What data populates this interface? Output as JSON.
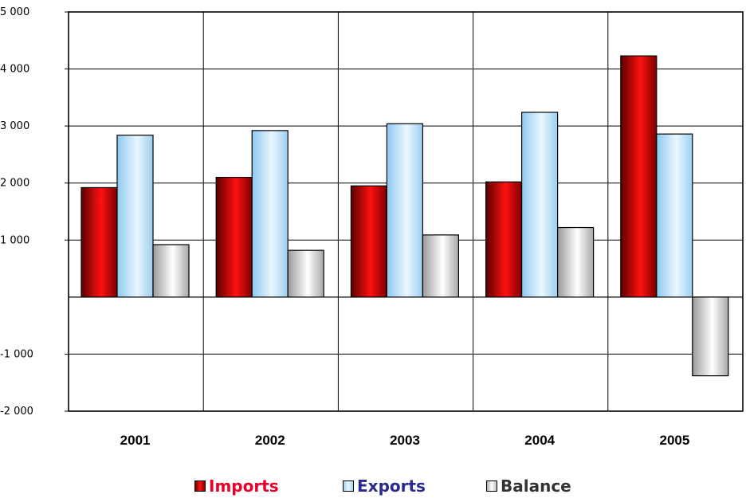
{
  "chart_data": {
    "type": "bar",
    "categories": [
      "2001",
      "2002",
      "2003",
      "2004",
      "2005"
    ],
    "series": [
      {
        "name": "Imports",
        "values": [
          1920,
          2100,
          1950,
          2020,
          4230
        ],
        "color": "#cc0000"
      },
      {
        "name": "Exports",
        "values": [
          2840,
          2920,
          3040,
          3240,
          2860
        ],
        "color": "#bfe6ff"
      },
      {
        "name": "Balance",
        "values": [
          920,
          820,
          1090,
          1220,
          -1380
        ],
        "color": "#e0e0e0"
      }
    ],
    "y_ticks": [
      "5 000",
      "4 000",
      "3 000",
      "2 000",
      "1 000",
      "-1 000",
      "-2 000"
    ],
    "ylim": [
      -2000,
      5000
    ],
    "grid": true,
    "legend_position": "bottom",
    "legend_colors": {
      "Imports": "#e8002a",
      "Exports": "#2a2a8c",
      "Balance": "#333333"
    }
  }
}
